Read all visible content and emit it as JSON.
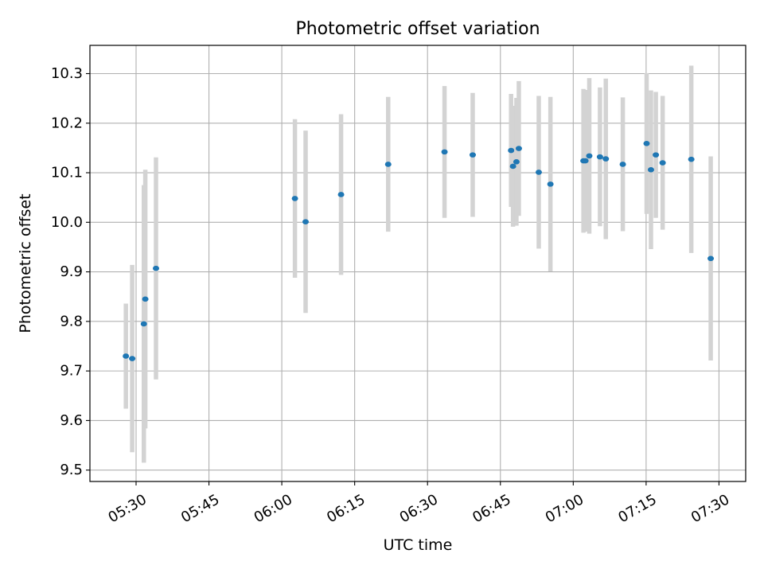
{
  "chart_data": {
    "type": "scatter",
    "title": "Photometric offset variation",
    "xlabel": "UTC time",
    "ylabel": "Photometric offset",
    "grid": true,
    "xlim_minutes": [
      320.5,
      455.5
    ],
    "ylim": [
      9.477,
      10.357
    ],
    "x_ticks": [
      {
        "minutes": 330,
        "label": "05:30"
      },
      {
        "minutes": 345,
        "label": "05:45"
      },
      {
        "minutes": 360,
        "label": "06:00"
      },
      {
        "minutes": 375,
        "label": "06:15"
      },
      {
        "minutes": 390,
        "label": "06:30"
      },
      {
        "minutes": 405,
        "label": "06:45"
      },
      {
        "minutes": 420,
        "label": "07:00"
      },
      {
        "minutes": 435,
        "label": "07:15"
      },
      {
        "minutes": 450,
        "label": "07:30"
      }
    ],
    "y_ticks": [
      {
        "value": 9.5,
        "label": "9.5"
      },
      {
        "value": 9.6,
        "label": "9.6"
      },
      {
        "value": 9.7,
        "label": "9.7"
      },
      {
        "value": 9.8,
        "label": "9.8"
      },
      {
        "value": 9.9,
        "label": "9.9"
      },
      {
        "value": 10.0,
        "label": "10.0"
      },
      {
        "value": 10.1,
        "label": "10.1"
      },
      {
        "value": 10.2,
        "label": "10.2"
      },
      {
        "value": 10.3,
        "label": "10.3"
      }
    ],
    "series": [
      {
        "name": "Photometric offset",
        "marker_color": "#1f77b4",
        "errorbar_color": "#d3d3d3",
        "points": [
          {
            "t": 327.9,
            "y": 9.73,
            "err": 0.106
          },
          {
            "t": 329.2,
            "y": 9.725,
            "err": 0.189
          },
          {
            "t": 331.6,
            "y": 9.795,
            "err": 0.28
          },
          {
            "t": 331.9,
            "y": 9.845,
            "err": 0.261
          },
          {
            "t": 334.1,
            "y": 9.907,
            "err": 0.224
          },
          {
            "t": 362.7,
            "y": 10.048,
            "err": 0.16
          },
          {
            "t": 364.9,
            "y": 10.001,
            "err": 0.184
          },
          {
            "t": 372.2,
            "y": 10.056,
            "err": 0.162
          },
          {
            "t": 381.9,
            "y": 10.117,
            "err": 0.136
          },
          {
            "t": 393.5,
            "y": 10.142,
            "err": 0.133
          },
          {
            "t": 399.3,
            "y": 10.136,
            "err": 0.125
          },
          {
            "t": 407.2,
            "y": 10.145,
            "err": 0.114
          },
          {
            "t": 407.6,
            "y": 10.113,
            "err": 0.122
          },
          {
            "t": 408.3,
            "y": 10.122,
            "err": 0.129
          },
          {
            "t": 408.8,
            "y": 10.149,
            "err": 0.136
          },
          {
            "t": 412.9,
            "y": 10.101,
            "err": 0.154
          },
          {
            "t": 415.3,
            "y": 10.077,
            "err": 0.176
          },
          {
            "t": 422.1,
            "y": 10.124,
            "err": 0.145
          },
          {
            "t": 422.5,
            "y": 10.124,
            "err": 0.143
          },
          {
            "t": 423.3,
            "y": 10.134,
            "err": 0.157
          },
          {
            "t": 425.5,
            "y": 10.132,
            "err": 0.14
          },
          {
            "t": 426.7,
            "y": 10.128,
            "err": 0.162
          },
          {
            "t": 430.2,
            "y": 10.117,
            "err": 0.135
          },
          {
            "t": 435.1,
            "y": 10.159,
            "err": 0.142
          },
          {
            "t": 436.0,
            "y": 10.106,
            "err": 0.16
          },
          {
            "t": 437.0,
            "y": 10.136,
            "err": 0.127
          },
          {
            "t": 438.4,
            "y": 10.12,
            "err": 0.135
          },
          {
            "t": 444.3,
            "y": 10.127,
            "err": 0.189
          },
          {
            "t": 448.3,
            "y": 9.927,
            "err": 0.206
          }
        ]
      }
    ]
  }
}
